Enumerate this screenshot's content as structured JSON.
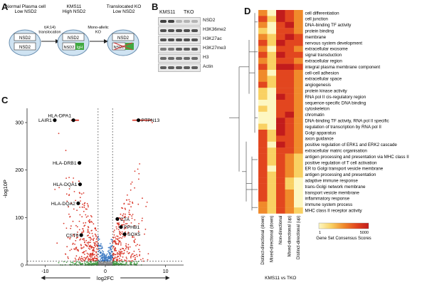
{
  "panels": {
    "a": "A",
    "b": "B",
    "c": "C",
    "d": "D"
  },
  "panel_a": {
    "stage1_title": "Normal Plasma cell\nLow NSD2",
    "stage2_title": "KMS11\nHigh NSD2",
    "stage3_title": "Translocated KO\nLow NSD2",
    "arrow1_label": "t(4;14)\ntranslocation",
    "arrow2_label": "Mono-allelic\nKO",
    "gene_label": "NSD2",
    "igh_label": "IgH",
    "colors": {
      "cell_fill": "#cfe3f2",
      "cell_stroke": "#6a8fb0",
      "igh": "#41a941",
      "ko": "#d23a3a"
    }
  },
  "panel_b": {
    "lanes": [
      "KMS11",
      "TKO"
    ],
    "rows": [
      "NSD2",
      "H3K36me2",
      "H3K27ac",
      "H3K27me3",
      "H3",
      "Actin"
    ]
  },
  "panel_c": {
    "chart_data": {
      "type": "scatter",
      "title": "",
      "xlabel": "log2FC",
      "ylabel": "-log10P",
      "xlim": [
        -13,
        13
      ],
      "ylim": [
        0,
        330
      ],
      "xticks": [
        -10,
        0,
        10
      ],
      "yticks": [
        0,
        100,
        200,
        300
      ],
      "labeled_points": [
        {
          "label": "LAIR1",
          "x": -8.4,
          "y": 305
        },
        {
          "label": "HLA-DPA1",
          "x": -5.3,
          "y": 305
        },
        {
          "label": "PTPN13",
          "x": 5.5,
          "y": 305
        },
        {
          "label": "HLA-DRB1",
          "x": -4.3,
          "y": 215
        },
        {
          "label": "HLA-DQA1",
          "x": -4.2,
          "y": 170
        },
        {
          "label": "HLA-DQA2",
          "x": -4.5,
          "y": 130
        },
        {
          "label": "CST6",
          "x": -4.0,
          "y": 63
        },
        {
          "label": "CTA",
          "x": 2.0,
          "y": 97
        },
        {
          "label": "PPHB1",
          "x": 2.6,
          "y": 80
        },
        {
          "label": "SOX5",
          "x": 3.2,
          "y": 65
        }
      ],
      "colors": {
        "significant": "#d9372a",
        "fold_only": "#3b78c2",
        "p_only": "#4aa04a",
        "ns": "#8c8c8c"
      }
    }
  },
  "panel_d": {
    "chart_data": {
      "type": "heatmap",
      "columns": [
        "Distinct-directional (down)",
        "Mixed-directional (down)",
        "Non-directional",
        "Mixed-directional (up)",
        "Distinct-directional (up)"
      ],
      "xlabel": "KMS11 vs TKO",
      "rows": [
        "cell differentiation",
        "cell junction",
        "DNA-binding TF activity",
        "protein binding",
        "membrane",
        "nervous system development",
        "extracellular exosome",
        "signal transduction",
        "extracellular region",
        "integral plasma membrane component",
        "cell-cell adhesion",
        "extracellular space",
        "angiogenesis",
        "protein kinase activity",
        "RNA pol II cis-regulatory region",
        "sequence-specific DNA binding",
        "cytoskeleton",
        "chromatin",
        "DNA-binding TF activity, RNA pol II specific",
        "regulation of transcription by RNA pol II",
        "Golgi apparatus",
        "axon guidance",
        "positive regulation of ERK1 and ERK2 cascade",
        "extracellular matric organisation",
        "antigen processing and presentation via MHC class II",
        "positive regulation of T cell activation",
        "ER to Golgi transport vesicle membrane",
        "antigen processing and presentation",
        "adaptive immune response",
        "trans-Golgi network membrane",
        "transport vesicle membrane",
        "inflammatory response",
        "immune system process",
        "MHC class II receptor activity"
      ],
      "values": [
        [
          3,
          1,
          5,
          4,
          3
        ],
        [
          4,
          2,
          5,
          4,
          3
        ],
        [
          3,
          1,
          4,
          5,
          3
        ],
        [
          2,
          1,
          4,
          4,
          3
        ],
        [
          3,
          2,
          4,
          5,
          4
        ],
        [
          4,
          2,
          5,
          4,
          4
        ],
        [
          3,
          1,
          4,
          4,
          3
        ],
        [
          4,
          2,
          5,
          4,
          4
        ],
        [
          3,
          2,
          4,
          4,
          3
        ],
        [
          4,
          2,
          5,
          5,
          4
        ],
        [
          3,
          1,
          4,
          4,
          3
        ],
        [
          3,
          2,
          4,
          4,
          3
        ],
        [
          4,
          2,
          4,
          4,
          3
        ],
        [
          2,
          1,
          4,
          4,
          3
        ],
        [
          2,
          1,
          5,
          4,
          3
        ],
        [
          1,
          1,
          4,
          4,
          3
        ],
        [
          2,
          1,
          4,
          4,
          3
        ],
        [
          1,
          1,
          4,
          5,
          3
        ],
        [
          1,
          1,
          5,
          4,
          3
        ],
        [
          2,
          1,
          5,
          4,
          3
        ],
        [
          4,
          2,
          5,
          4,
          3
        ],
        [
          4,
          2,
          4,
          4,
          3
        ],
        [
          4,
          1,
          5,
          4,
          3
        ],
        [
          4,
          2,
          4,
          4,
          3
        ],
        [
          4,
          2,
          4,
          3,
          2
        ],
        [
          4,
          2,
          4,
          3,
          2
        ],
        [
          4,
          1,
          4,
          3,
          2
        ],
        [
          4,
          2,
          4,
          3,
          2
        ],
        [
          4,
          2,
          4,
          2,
          1
        ],
        [
          4,
          2,
          4,
          2,
          1
        ],
        [
          4,
          2,
          4,
          3,
          1
        ],
        [
          4,
          2,
          4,
          3,
          1
        ],
        [
          3,
          2,
          4,
          3,
          1
        ],
        [
          3,
          2,
          4,
          3,
          2
        ]
      ],
      "legend_title": "Gene Set Consensus Scores",
      "legend_min": "1",
      "legend_max": "5000",
      "palette": [
        "#fdf7c2",
        "#f9d163",
        "#f08a2b",
        "#e2461f",
        "#c21c1c"
      ]
    }
  }
}
